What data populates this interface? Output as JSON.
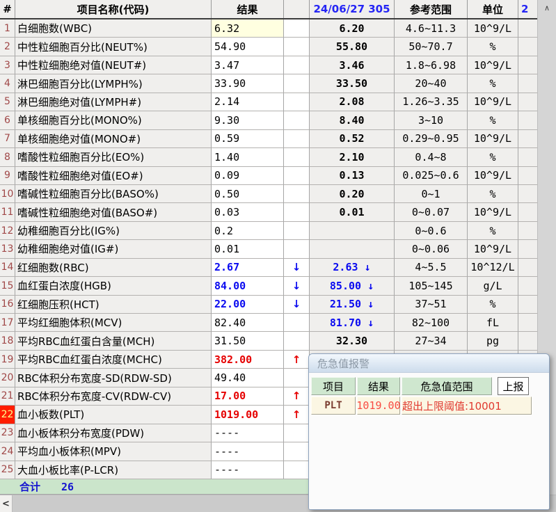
{
  "table": {
    "header": [
      "#",
      "项目名称(代码)",
      "结果",
      "",
      "24/06/27 305",
      "参考范围",
      "单位",
      "2"
    ],
    "rows": [
      {
        "n": "1",
        "name": "白细胞数(WBC)",
        "result": "6.32",
        "rs": "normal",
        "arrow": "",
        "prev": "6.20",
        "prevArrow": "",
        "ps": "normal",
        "ref": "4.6~11.3",
        "unit": "10^9/L",
        "sel": true,
        "alert": false,
        "peek": false
      },
      {
        "n": "2",
        "name": "中性粒细胞百分比(NEUT%)",
        "result": "54.90",
        "rs": "normal",
        "arrow": "",
        "prev": "55.80",
        "prevArrow": "",
        "ps": "normal",
        "ref": "50~70.7",
        "unit": "%",
        "sel": false,
        "alert": false,
        "peek": false
      },
      {
        "n": "3",
        "name": "中性粒细胞绝对值(NEUT#)",
        "result": "3.47",
        "rs": "normal",
        "arrow": "",
        "prev": "3.46",
        "prevArrow": "",
        "ps": "normal",
        "ref": "1.8~6.98",
        "unit": "10^9/L",
        "sel": false,
        "alert": false,
        "peek": false
      },
      {
        "n": "4",
        "name": "淋巴细胞百分比(LYMPH%)",
        "result": "33.90",
        "rs": "normal",
        "arrow": "",
        "prev": "33.50",
        "prevArrow": "",
        "ps": "normal",
        "ref": "20~40",
        "unit": "%",
        "sel": false,
        "alert": false,
        "peek": false
      },
      {
        "n": "5",
        "name": "淋巴细胞绝对值(LYMPH#)",
        "result": "2.14",
        "rs": "normal",
        "arrow": "",
        "prev": "2.08",
        "prevArrow": "",
        "ps": "normal",
        "ref": "1.26~3.35",
        "unit": "10^9/L",
        "sel": false,
        "alert": false,
        "peek": false
      },
      {
        "n": "6",
        "name": "单核细胞百分比(MONO%)",
        "result": "9.30",
        "rs": "normal",
        "arrow": "",
        "prev": "8.40",
        "prevArrow": "",
        "ps": "normal",
        "ref": "3~10",
        "unit": "%",
        "sel": false,
        "alert": false,
        "peek": false
      },
      {
        "n": "7",
        "name": "单核细胞绝对值(MONO#)",
        "result": "0.59",
        "rs": "normal",
        "arrow": "",
        "prev": "0.52",
        "prevArrow": "",
        "ps": "normal",
        "ref": "0.29~0.95",
        "unit": "10^9/L",
        "sel": false,
        "alert": false,
        "peek": false
      },
      {
        "n": "8",
        "name": "嗜酸性粒细胞百分比(EO%)",
        "result": "1.40",
        "rs": "normal",
        "arrow": "",
        "prev": "2.10",
        "prevArrow": "",
        "ps": "normal",
        "ref": "0.4~8",
        "unit": "%",
        "sel": false,
        "alert": false,
        "peek": false
      },
      {
        "n": "9",
        "name": "嗜酸性粒细胞绝对值(EO#)",
        "result": "0.09",
        "rs": "normal",
        "arrow": "",
        "prev": "0.13",
        "prevArrow": "",
        "ps": "normal",
        "ref": "0.025~0.6",
        "unit": "10^9/L",
        "sel": false,
        "alert": false,
        "peek": false
      },
      {
        "n": "10",
        "name": "嗜碱性粒细胞百分比(BASO%)",
        "result": "0.50",
        "rs": "normal",
        "arrow": "",
        "prev": "0.20",
        "prevArrow": "",
        "ps": "normal",
        "ref": "0~1",
        "unit": "%",
        "sel": false,
        "alert": false,
        "peek": false
      },
      {
        "n": "11",
        "name": "嗜碱性粒细胞绝对值(BASO#)",
        "result": "0.03",
        "rs": "normal",
        "arrow": "",
        "prev": "0.01",
        "prevArrow": "",
        "ps": "normal",
        "ref": "0~0.07",
        "unit": "10^9/L",
        "sel": false,
        "alert": false,
        "peek": false
      },
      {
        "n": "12",
        "name": "幼稚细胞百分比(IG%)",
        "result": "0.2",
        "rs": "normal",
        "arrow": "",
        "prev": "",
        "prevArrow": "",
        "ps": "normal",
        "ref": "0~0.6",
        "unit": "%",
        "sel": false,
        "alert": false,
        "peek": false
      },
      {
        "n": "13",
        "name": "幼稚细胞绝对值(IG#)",
        "result": "0.01",
        "rs": "normal",
        "arrow": "",
        "prev": "",
        "prevArrow": "",
        "ps": "normal",
        "ref": "0~0.06",
        "unit": "10^9/L",
        "sel": false,
        "alert": false,
        "peek": false
      },
      {
        "n": "14",
        "name": "红细胞数(RBC)",
        "result": "2.67",
        "rs": "low",
        "arrow": "↓",
        "prev": "2.63",
        "prevArrow": "↓",
        "ps": "low",
        "ref": "4~5.5",
        "unit": "10^12/L",
        "sel": false,
        "alert": false,
        "peek": false
      },
      {
        "n": "15",
        "name": "血红蛋白浓度(HGB)",
        "result": "84.00",
        "rs": "low",
        "arrow": "↓",
        "prev": "85.00",
        "prevArrow": "↓",
        "ps": "low",
        "ref": "105~145",
        "unit": "g/L",
        "sel": false,
        "alert": false,
        "peek": false
      },
      {
        "n": "16",
        "name": "红细胞压积(HCT)",
        "result": "22.00",
        "rs": "low",
        "arrow": "↓",
        "prev": "21.50",
        "prevArrow": "↓",
        "ps": "low",
        "ref": "37~51",
        "unit": "%",
        "sel": false,
        "alert": false,
        "peek": false
      },
      {
        "n": "17",
        "name": "平均红细胞体积(MCV)",
        "result": "82.40",
        "rs": "normal",
        "arrow": "",
        "prev": "81.70",
        "prevArrow": "↓",
        "ps": "low",
        "ref": "82~100",
        "unit": "fL",
        "sel": false,
        "alert": false,
        "peek": false
      },
      {
        "n": "18",
        "name": "平均RBC血红蛋白含量(MCH)",
        "result": "31.50",
        "rs": "normal",
        "arrow": "",
        "prev": "32.30",
        "prevArrow": "",
        "ps": "normal",
        "ref": "27~34",
        "unit": "pg",
        "sel": false,
        "alert": false,
        "peek": false
      },
      {
        "n": "19",
        "name": "平均RBC血红蛋白浓度(MCHC)",
        "result": "382.00",
        "rs": "high",
        "arrow": "↑",
        "prev": "",
        "prevArrow": "↑",
        "ps": "high",
        "ref": "",
        "unit": "",
        "sel": false,
        "alert": false,
        "peek": true
      },
      {
        "n": "20",
        "name": "RBC体积分布宽度-SD(RDW-SD)",
        "result": "49.40",
        "rs": "normal",
        "arrow": "",
        "prev": "",
        "prevArrow": "",
        "ps": "normal",
        "ref": "",
        "unit": "",
        "sel": false,
        "alert": false,
        "peek": false
      },
      {
        "n": "21",
        "name": "RBC体积分布宽度-CV(RDW-CV)",
        "result": "17.00",
        "rs": "high",
        "arrow": "↑",
        "prev": "",
        "prevArrow": "",
        "ps": "normal",
        "ref": "",
        "unit": "",
        "sel": false,
        "alert": false,
        "peek": false
      },
      {
        "n": "22",
        "name": "血小板数(PLT)",
        "result": "1019.00",
        "rs": "high",
        "arrow": "↑",
        "prev": "",
        "prevArrow": "",
        "ps": "normal",
        "ref": "",
        "unit": "",
        "sel": false,
        "alert": true,
        "peek": false
      },
      {
        "n": "23",
        "name": "血小板体积分布宽度(PDW)",
        "result": "----",
        "rs": "normal",
        "arrow": "",
        "prev": "",
        "prevArrow": "",
        "ps": "normal",
        "ref": "",
        "unit": "",
        "sel": false,
        "alert": false,
        "peek": false
      },
      {
        "n": "24",
        "name": "平均血小板体积(MPV)",
        "result": "----",
        "rs": "normal",
        "arrow": "",
        "prev": "",
        "prevArrow": "",
        "ps": "normal",
        "ref": "",
        "unit": "",
        "sel": false,
        "alert": false,
        "peek": false
      },
      {
        "n": "25",
        "name": "大血小板比率(P-LCR)",
        "result": "----",
        "rs": "normal",
        "arrow": "",
        "prev": "",
        "prevArrow": "",
        "ps": "normal",
        "ref": "",
        "unit": "",
        "sel": false,
        "alert": false,
        "peek": false
      }
    ]
  },
  "footer": {
    "label": "合计",
    "count": "26"
  },
  "dialog": {
    "title": "危急值报警",
    "cols": [
      "项目",
      "结果",
      "危急值范围"
    ],
    "report_button": "上报",
    "row": {
      "item": "PLT",
      "result": "1019.00",
      "range": "超出上限阈值:10001"
    }
  },
  "icons": {
    "up_arrow": "∧",
    "left_arrow": "<"
  },
  "colors": {
    "low_value": "#0a0af0",
    "high_value": "#e60000",
    "alert_row_bg": "#ff1d00",
    "selected_cell_bg": "#ffffe0",
    "footer_bg": "#cbe5cb",
    "dialog_header_bg": "#cfe7cf"
  }
}
